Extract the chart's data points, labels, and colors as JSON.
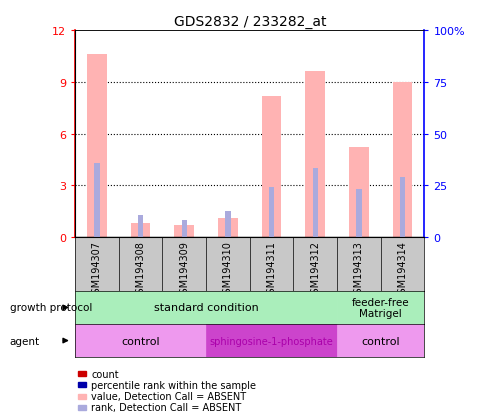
{
  "title": "GDS2832 / 233282_at",
  "samples": [
    "GSM194307",
    "GSM194308",
    "GSM194309",
    "GSM194310",
    "GSM194311",
    "GSM194312",
    "GSM194313",
    "GSM194314"
  ],
  "pink_bar_values": [
    10.6,
    0.8,
    0.7,
    1.1,
    8.2,
    9.6,
    5.2,
    9.0
  ],
  "blue_bar_values": [
    4.3,
    1.3,
    1.0,
    1.5,
    2.9,
    4.0,
    2.8,
    3.5
  ],
  "pink_bar_color": "#FFB3B3",
  "blue_bar_color": "#AAAADD",
  "red_dot_color": "#CC0000",
  "blue_dot_color": "#0000AA",
  "left_ylim": [
    0,
    12
  ],
  "left_yticks": [
    0,
    3,
    6,
    9,
    12
  ],
  "right_ylim": [
    0,
    100
  ],
  "right_yticks": [
    0,
    25,
    50,
    75,
    100
  ],
  "right_yticklabels": [
    "0",
    "25",
    "50",
    "75",
    "100%"
  ],
  "growth_protocol_standard_color": "#AAEEBB",
  "growth_protocol_feeder_color": "#AAEEBB",
  "agent_control_color": "#EE99EE",
  "agent_sphingo_color": "#CC44CC",
  "legend_labels": [
    "count",
    "percentile rank within the sample",
    "value, Detection Call = ABSENT",
    "rank, Detection Call = ABSENT"
  ],
  "legend_colors": [
    "#CC0000",
    "#0000AA",
    "#FFB3B3",
    "#AAAADD"
  ]
}
